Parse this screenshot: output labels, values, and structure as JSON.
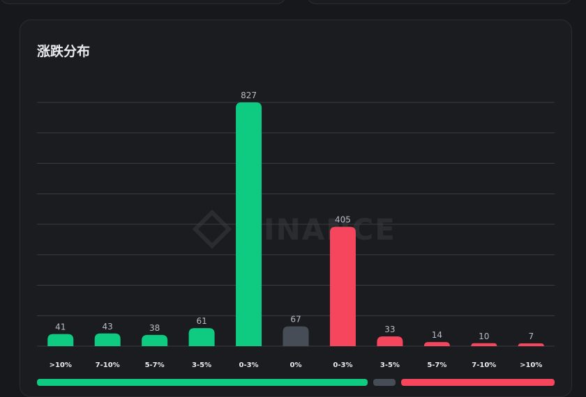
{
  "title": "涨跌分布",
  "colors": {
    "up": "#0ecb81",
    "flat": "#474d57",
    "down": "#f6465d",
    "grid": "#3a3d44",
    "label": "#b7bdc6",
    "tick": "#eaecef"
  },
  "watermark": "BINANCE",
  "chart_data": {
    "type": "bar",
    "title": "涨跌分布",
    "categories": [
      ">10%",
      "7-10%",
      "5-7%",
      "3-5%",
      "0-3%",
      "0%",
      "0-3%",
      "3-5%",
      "5-7%",
      "7-10%",
      ">10%"
    ],
    "values": [
      41,
      43,
      38,
      61,
      827,
      67,
      405,
      33,
      14,
      10,
      7
    ],
    "bar_colors": [
      "up",
      "up",
      "up",
      "up",
      "up",
      "flat",
      "down",
      "down",
      "down",
      "down",
      "down"
    ],
    "ylim": [
      0,
      827
    ],
    "grid": true,
    "legend": "none"
  }
}
